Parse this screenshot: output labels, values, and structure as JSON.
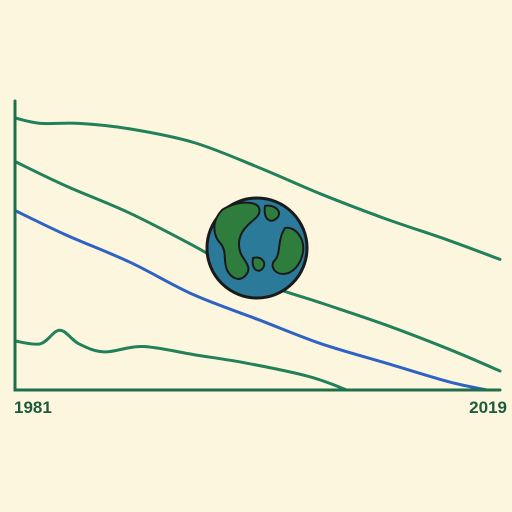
{
  "colors": {
    "background": "#fcf6df",
    "axis": "#1f7048",
    "green": "#22805a",
    "blue": "#2f62c2",
    "ocean": "#2b7a9a",
    "land": "#2e7d3d",
    "outline": "#1a1a1a"
  },
  "icons": [
    "globe-icon"
  ],
  "chart_data": {
    "type": "line",
    "title": "",
    "xlabel": "",
    "ylabel": "",
    "xlim": [
      1981,
      2019
    ],
    "ylim": [
      0,
      100
    ],
    "grid": false,
    "legend": "none",
    "x_tick_labels": [
      "1981",
      "2019"
    ],
    "series": [
      {
        "color": "green",
        "x": [
          1981,
          1983,
          1986,
          1990,
          1995,
          2000,
          2005,
          2010,
          2015,
          2019
        ],
        "y": [
          100,
          98,
          98,
          96,
          91,
          82,
          72,
          63,
          55,
          48
        ]
      },
      {
        "color": "green",
        "x": [
          1981,
          1985,
          1990,
          1995,
          2000,
          2005,
          2010,
          2015,
          2019
        ],
        "y": [
          84,
          75,
          65,
          53,
          40,
          32,
          24,
          15,
          7
        ]
      },
      {
        "color": "blue",
        "x": [
          1981,
          1985,
          1990,
          1995,
          2000,
          2005,
          2010,
          2015,
          2018
        ],
        "y": [
          66,
          57,
          47,
          35,
          26,
          17,
          10,
          3,
          0
        ]
      },
      {
        "color": "green",
        "x": [
          1981,
          1983,
          1984.5,
          1986,
          1988,
          1991,
          1995,
          1999,
          2004,
          2007
        ],
        "y": [
          18,
          17,
          22,
          17,
          14,
          16,
          13,
          10,
          5,
          0
        ]
      }
    ]
  }
}
